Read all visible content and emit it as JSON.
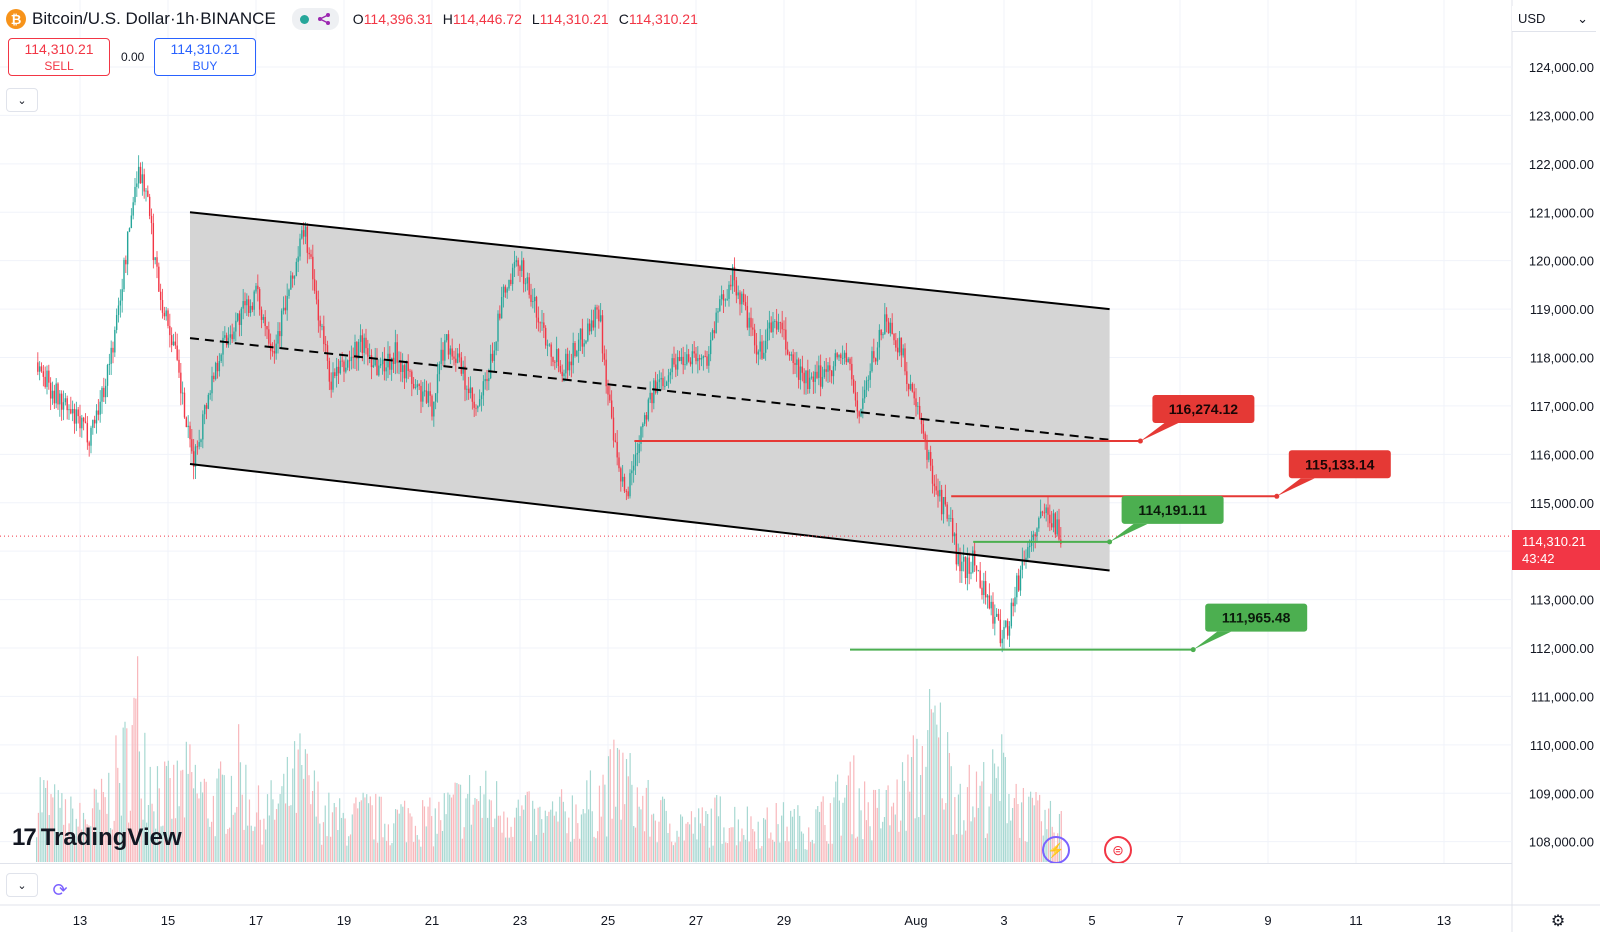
{
  "header": {
    "logo_glyph": "₿",
    "symbol": "Bitcoin",
    "sep1": " / ",
    "quote": "U.S. Dollar",
    "sep2": " · ",
    "interval": "1h",
    "sep3": " · ",
    "exchange": "BINANCE",
    "ohlc": {
      "o_label": "O",
      "o_value": "114,396.31",
      "h_label": "H",
      "h_value": "114,446.72",
      "l_label": "L",
      "l_value": "114,310.21",
      "c_label": "C",
      "c_value": "114,310.21"
    },
    "status_color": "#26a69a",
    "share_icon": "share-icon"
  },
  "trade": {
    "sell_price": "114,310.21",
    "sell_label": "SELL",
    "spread": "0.00",
    "buy_price": "114,310.21",
    "buy_label": "BUY"
  },
  "currency": {
    "value": "USD",
    "arrow": "⌄"
  },
  "collapse_glyph": "⌄",
  "last_price": {
    "value": "114,310.21",
    "countdown": "43:42"
  },
  "brand": {
    "mark": "17",
    "name": "TradingView"
  },
  "icons": {
    "refresh": "⟳",
    "settings": "⚙",
    "bolt": "⚡",
    "flag": "⊜"
  },
  "colors": {
    "up": "#26a69a",
    "down": "#f23645",
    "support": "#4caf50",
    "resistance": "#e53935",
    "channel_fill": "#d3d3d3"
  },
  "chart_data": {
    "type": "candlestick",
    "title": "Bitcoin / U.S. Dollar · 1h · BINANCE",
    "ylim": [
      107700,
      124900
    ],
    "y_ticks": [
      "124,000.00",
      "123,000.00",
      "122,000.00",
      "121,000.00",
      "120,000.00",
      "119,000.00",
      "118,000.00",
      "117,000.00",
      "116,000.00",
      "115,000.00",
      "114,000.00",
      "113,000.00",
      "112,000.00",
      "111,000.00",
      "110,000.00",
      "109,000.00",
      "108,000.00"
    ],
    "x_ticks": [
      {
        "label": "13",
        "day": 13
      },
      {
        "label": "15",
        "day": 15
      },
      {
        "label": "17",
        "day": 17
      },
      {
        "label": "19",
        "day": 19
      },
      {
        "label": "21",
        "day": 21
      },
      {
        "label": "23",
        "day": 23
      },
      {
        "label": "25",
        "day": 25
      },
      {
        "label": "27",
        "day": 27
      },
      {
        "label": "29",
        "day": 29
      },
      {
        "label": "Aug",
        "day": 32
      },
      {
        "label": "3",
        "day": 34
      },
      {
        "label": "5",
        "day": 36
      },
      {
        "label": "7",
        "day": 38
      },
      {
        "label": "9",
        "day": 40
      },
      {
        "label": "11",
        "day": 42
      },
      {
        "label": "13",
        "day": 44
      }
    ],
    "price_path": [
      [
        12.0,
        117900
      ],
      [
        12.4,
        117300
      ],
      [
        12.8,
        116800
      ],
      [
        13.2,
        116400
      ],
      [
        13.5,
        117200
      ],
      [
        13.8,
        118500
      ],
      [
        14.1,
        120500
      ],
      [
        14.3,
        121900
      ],
      [
        14.5,
        121500
      ],
      [
        14.7,
        120000
      ],
      [
        14.9,
        119000
      ],
      [
        15.1,
        118400
      ],
      [
        15.3,
        117300
      ],
      [
        15.5,
        116100
      ],
      [
        15.6,
        115900
      ],
      [
        15.9,
        117200
      ],
      [
        16.2,
        118200
      ],
      [
        16.6,
        118800
      ],
      [
        17.0,
        119300
      ],
      [
        17.4,
        118200
      ],
      [
        17.8,
        119500
      ],
      [
        18.1,
        120700
      ],
      [
        18.4,
        119000
      ],
      [
        18.7,
        117500
      ],
      [
        19.0,
        117800
      ],
      [
        19.4,
        118300
      ],
      [
        19.8,
        117800
      ],
      [
        20.2,
        118100
      ],
      [
        20.6,
        117400
      ],
      [
        21.0,
        117000
      ],
      [
        21.3,
        118400
      ],
      [
        21.6,
        117900
      ],
      [
        22.0,
        116800
      ],
      [
        22.3,
        117700
      ],
      [
        22.6,
        119200
      ],
      [
        23.0,
        120000
      ],
      [
        23.3,
        119100
      ],
      [
        23.7,
        118200
      ],
      [
        24.0,
        117800
      ],
      [
        24.4,
        118400
      ],
      [
        24.8,
        119000
      ],
      [
        25.0,
        117200
      ],
      [
        25.2,
        115800
      ],
      [
        25.4,
        115100
      ],
      [
        25.6,
        115900
      ],
      [
        25.8,
        116800
      ],
      [
        26.1,
        117400
      ],
      [
        26.5,
        117900
      ],
      [
        26.9,
        118100
      ],
      [
        27.2,
        117900
      ],
      [
        27.5,
        118900
      ],
      [
        27.8,
        119700
      ],
      [
        28.1,
        119000
      ],
      [
        28.4,
        118000
      ],
      [
        28.8,
        118800
      ],
      [
        29.2,
        117900
      ],
      [
        29.6,
        117400
      ],
      [
        30.0,
        117800
      ],
      [
        30.4,
        118100
      ],
      [
        30.7,
        116800
      ],
      [
        31.0,
        117900
      ],
      [
        31.3,
        118800
      ],
      [
        31.6,
        118300
      ],
      [
        31.9,
        117300
      ],
      [
        32.2,
        116200
      ],
      [
        32.5,
        115200
      ],
      [
        32.8,
        114500
      ],
      [
        33.0,
        113600
      ],
      [
        33.3,
        113800
      ],
      [
        33.6,
        113100
      ],
      [
        33.9,
        112300
      ],
      [
        34.1,
        112500
      ],
      [
        34.4,
        113700
      ],
      [
        34.7,
        114400
      ],
      [
        35.0,
        114900
      ],
      [
        35.2,
        114500
      ],
      [
        35.3,
        114310
      ]
    ],
    "volume_series": [
      [
        12.0,
        0.45
      ],
      [
        12.5,
        0.3
      ],
      [
        13.0,
        0.25
      ],
      [
        13.5,
        0.35
      ],
      [
        14.0,
        0.6
      ],
      [
        14.3,
        0.9
      ],
      [
        14.6,
        0.55
      ],
      [
        15.0,
        0.4
      ],
      [
        15.5,
        0.5
      ],
      [
        16.0,
        0.35
      ],
      [
        16.6,
        0.55
      ],
      [
        17.0,
        0.3
      ],
      [
        17.5,
        0.35
      ],
      [
        18.0,
        0.55
      ],
      [
        18.5,
        0.3
      ],
      [
        19.0,
        0.25
      ],
      [
        19.5,
        0.3
      ],
      [
        20.0,
        0.25
      ],
      [
        20.5,
        0.3
      ],
      [
        21.0,
        0.25
      ],
      [
        21.5,
        0.35
      ],
      [
        22.0,
        0.4
      ],
      [
        22.5,
        0.35
      ],
      [
        23.0,
        0.3
      ],
      [
        23.5,
        0.25
      ],
      [
        24.0,
        0.3
      ],
      [
        24.5,
        0.35
      ],
      [
        25.0,
        0.45
      ],
      [
        25.3,
        0.55
      ],
      [
        25.6,
        0.4
      ],
      [
        26.0,
        0.3
      ],
      [
        26.5,
        0.25
      ],
      [
        27.0,
        0.22
      ],
      [
        27.5,
        0.28
      ],
      [
        28.0,
        0.25
      ],
      [
        28.5,
        0.22
      ],
      [
        29.0,
        0.25
      ],
      [
        29.5,
        0.22
      ],
      [
        30.0,
        0.3
      ],
      [
        30.5,
        0.45
      ],
      [
        31.0,
        0.3
      ],
      [
        31.5,
        0.35
      ],
      [
        32.0,
        0.55
      ],
      [
        32.4,
        0.8
      ],
      [
        32.8,
        0.5
      ],
      [
        33.2,
        0.4
      ],
      [
        33.7,
        0.45
      ],
      [
        34.0,
        0.55
      ],
      [
        34.5,
        0.3
      ],
      [
        35.0,
        0.25
      ],
      [
        35.3,
        0.22
      ]
    ],
    "channel": {
      "upper": [
        [
          15.5,
          121000
        ],
        [
          36.4,
          119000
        ]
      ],
      "lower": [
        [
          15.5,
          115800
        ],
        [
          36.4,
          113600
        ]
      ],
      "mid": [
        [
          15.5,
          118400
        ],
        [
          36.4,
          116300
        ]
      ]
    },
    "levels": [
      {
        "label": "116,274.12",
        "kind": "resistance",
        "from": 25.6,
        "to": 37.1,
        "price": 116274.12
      },
      {
        "label": "115,133.14",
        "kind": "resistance",
        "from": 32.8,
        "to": 40.2,
        "price": 115133.14
      },
      {
        "label": "114,191.11",
        "kind": "support",
        "from": 33.3,
        "to": 36.4,
        "price": 114191.11
      },
      {
        "label": "111,965.48",
        "kind": "support",
        "from": 30.5,
        "to": 38.3,
        "price": 111965.48
      }
    ],
    "last_price": 114310.21,
    "grid": true
  }
}
